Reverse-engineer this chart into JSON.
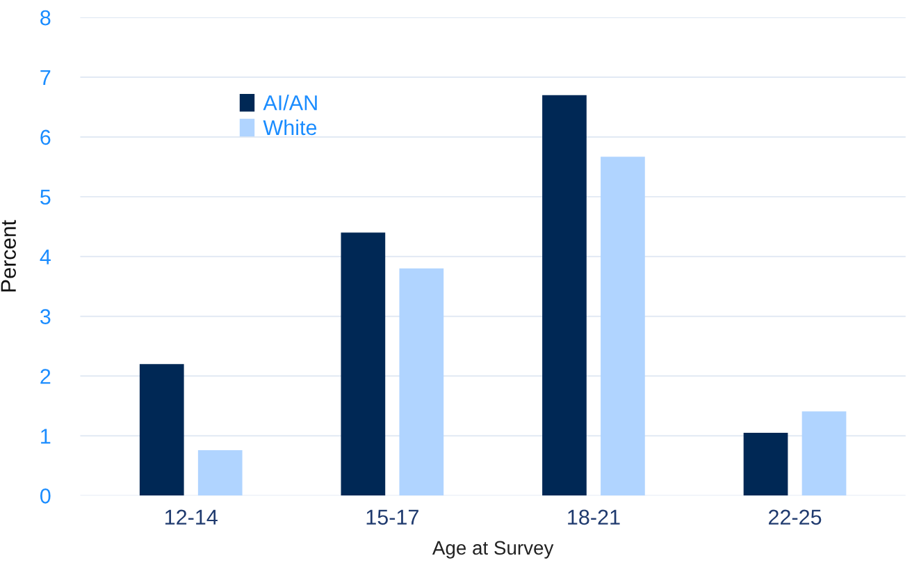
{
  "chart_data": {
    "type": "bar",
    "xlabel": "Age at Survey",
    "ylabel": "Percent",
    "categories": [
      "12-14",
      "15-17",
      "18-21",
      "22-25"
    ],
    "series": [
      {
        "name": "AI/AN",
        "color": "#002855",
        "values": [
          2.2,
          4.4,
          6.7,
          1.05
        ]
      },
      {
        "name": "White",
        "color": "#b0d4ff",
        "values": [
          0.76,
          3.8,
          5.67,
          1.41
        ]
      }
    ],
    "ylim": [
      0,
      8
    ],
    "yticks": [
      0,
      1,
      2,
      3,
      4,
      5,
      6,
      7,
      8
    ],
    "grid": "y",
    "legend": "top left"
  }
}
